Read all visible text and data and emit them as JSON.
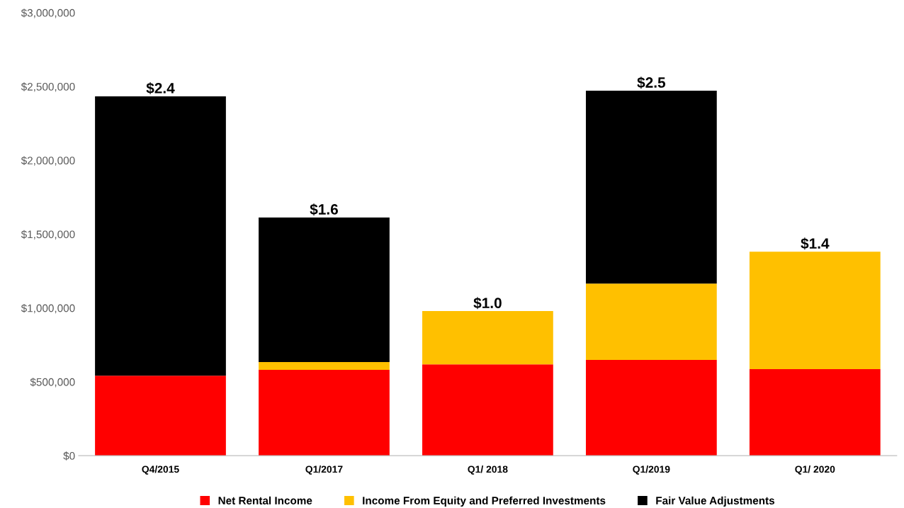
{
  "chart_data": {
    "type": "bar",
    "stacked": true,
    "categories": [
      "Q4/2015",
      "Q1/2017",
      "Q1/ 2018",
      "Q1/2019",
      "Q1/ 2020"
    ],
    "series": [
      {
        "name": "Net Rental Income",
        "color": "#ff0000",
        "values": [
          542000,
          581000,
          619000,
          648000,
          586000
        ]
      },
      {
        "name": "Income From Equity and Preferred Investments",
        "color": "#ffc000",
        "values": [
          0,
          53000,
          360000,
          518000,
          796000
        ]
      },
      {
        "name": "Fair Value Adjustments",
        "color": "#000000",
        "values": [
          1892000,
          979000,
          0,
          1306000,
          0
        ]
      }
    ],
    "ylim": [
      0,
      3000000
    ],
    "yticks": [
      {
        "value": 0,
        "label": "$0"
      },
      {
        "value": 500000,
        "label": "$500,000"
      },
      {
        "value": 1000000,
        "label": "$1,000,000"
      },
      {
        "value": 1500000,
        "label": "$1,500,000"
      },
      {
        "value": 2000000,
        "label": "$2,000,000"
      },
      {
        "value": 2500000,
        "label": "$2,500,000"
      },
      {
        "value": 3000000,
        "label": "$3,000,000"
      }
    ],
    "annotations": [
      {
        "text": "$2.4",
        "x": "Q4/2015",
        "y": 2434000
      },
      {
        "text": "$1.6",
        "x": "Q1/2017",
        "y": 1613000
      },
      {
        "text": "$1.0",
        "x": "Q1/ 2018",
        "y": 979000
      },
      {
        "text": "$2.5",
        "x": "Q1/2019",
        "y": 2472000
      },
      {
        "text": "$1.4",
        "x": "Q1/ 2020",
        "y": 1382000
      }
    ],
    "grid": false,
    "legend": "bottom"
  }
}
